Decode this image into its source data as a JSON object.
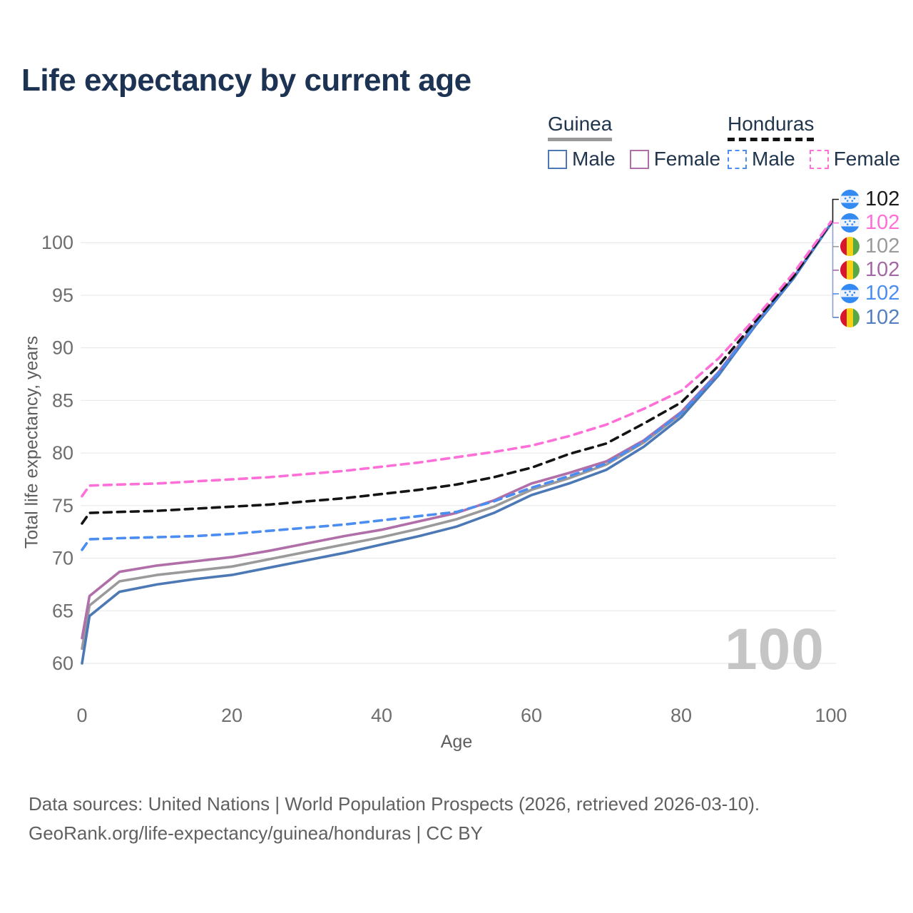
{
  "title": "Life expectancy by current age",
  "legend": {
    "groups": [
      {
        "id": "guinea",
        "name": "Guinea",
        "line_color": "#9a9a9a",
        "dashed": false,
        "items": [
          {
            "label": "Male",
            "color": "#4c79b5"
          },
          {
            "label": "Female",
            "color": "#b06fa8"
          }
        ]
      },
      {
        "id": "honduras",
        "name": "Honduras",
        "line_color": "#141414",
        "dashed": true,
        "items": [
          {
            "label": "Male",
            "color": "#4b8df0"
          },
          {
            "label": "Female",
            "color": "#ff6fd8"
          }
        ]
      }
    ]
  },
  "chart_data": {
    "type": "line",
    "title": "Life expectancy by current age",
    "xlabel": "Age",
    "ylabel": "Total life expectancy, years",
    "xlim": [
      0,
      100
    ],
    "ylim": [
      60,
      102
    ],
    "x_ticks": [
      0,
      20,
      40,
      60,
      80,
      100
    ],
    "y_ticks": [
      60,
      65,
      70,
      75,
      80,
      85,
      90,
      95,
      100
    ],
    "grid": "horizontal",
    "legend_position": "top-right",
    "x": [
      0,
      1,
      5,
      10,
      15,
      20,
      25,
      30,
      35,
      40,
      45,
      50,
      55,
      60,
      65,
      70,
      75,
      80,
      85,
      90,
      95,
      100
    ],
    "series": [
      {
        "id": "guinea",
        "name": "Guinea",
        "country": "Guinea",
        "sex": "Both",
        "color": "#9a9a9a",
        "dashed": false,
        "end_value": 102,
        "values": [
          61.4,
          65.5,
          67.8,
          68.4,
          68.8,
          69.2,
          69.9,
          70.6,
          71.3,
          72.0,
          72.8,
          73.7,
          74.9,
          76.5,
          77.6,
          78.9,
          81.0,
          83.7,
          87.6,
          92.3,
          96.7,
          101.8
        ]
      },
      {
        "id": "guinea-female",
        "name": "Guinea Female",
        "country": "Guinea",
        "sex": "Female",
        "color": "#b06fa8",
        "dashed": false,
        "end_value": 102,
        "values": [
          62.4,
          66.4,
          68.7,
          69.3,
          69.7,
          70.1,
          70.7,
          71.4,
          72.1,
          72.7,
          73.5,
          74.3,
          75.5,
          77.1,
          78.1,
          79.2,
          81.2,
          83.9,
          87.7,
          92.4,
          96.7,
          101.8
        ]
      },
      {
        "id": "guinea-male",
        "name": "Guinea Male",
        "country": "Guinea",
        "sex": "Male",
        "color": "#4c79b5",
        "dashed": false,
        "end_value": 102,
        "values": [
          60.0,
          64.5,
          66.8,
          67.5,
          68.0,
          68.4,
          69.1,
          69.8,
          70.5,
          71.3,
          72.1,
          73.0,
          74.3,
          76.0,
          77.1,
          78.4,
          80.6,
          83.4,
          87.4,
          92.2,
          96.6,
          101.8
        ]
      },
      {
        "id": "honduras-male",
        "name": "Honduras Male",
        "country": "Honduras",
        "sex": "Male",
        "color": "#4b8df0",
        "dashed": true,
        "end_value": 102,
        "values": [
          70.8,
          71.8,
          71.9,
          72.0,
          72.1,
          72.3,
          72.6,
          72.9,
          73.2,
          73.6,
          74.0,
          74.4,
          75.4,
          76.7,
          77.8,
          79.0,
          81.1,
          83.8,
          87.6,
          92.3,
          96.7,
          101.8
        ]
      },
      {
        "id": "honduras",
        "name": "Honduras",
        "country": "Honduras",
        "sex": "Both",
        "color": "#141414",
        "dashed": true,
        "end_value": 102,
        "values": [
          73.3,
          74.3,
          74.4,
          74.5,
          74.7,
          74.9,
          75.1,
          75.4,
          75.7,
          76.1,
          76.5,
          77.0,
          77.7,
          78.6,
          79.9,
          80.9,
          82.8,
          84.8,
          88.3,
          92.6,
          96.8,
          101.9
        ]
      },
      {
        "id": "honduras-female",
        "name": "Honduras Female",
        "country": "Honduras",
        "sex": "Female",
        "color": "#ff6fd8",
        "dashed": true,
        "end_value": 102,
        "values": [
          75.9,
          76.9,
          77.0,
          77.1,
          77.3,
          77.5,
          77.7,
          78.0,
          78.3,
          78.7,
          79.1,
          79.6,
          80.1,
          80.7,
          81.6,
          82.7,
          84.2,
          85.9,
          89.0,
          92.9,
          97.1,
          102.0
        ]
      }
    ]
  },
  "end_labels": [
    {
      "id": "honduras",
      "series": "Honduras",
      "flag": "honduras",
      "value": "102",
      "color": "#1a1a1a"
    },
    {
      "id": "honduras-female",
      "series": "Honduras Female",
      "flag": "honduras",
      "value": "102",
      "color": "#ff6fd8"
    },
    {
      "id": "guinea",
      "series": "Guinea",
      "flag": "guinea",
      "value": "102",
      "color": "#9a9a9a"
    },
    {
      "id": "guinea-female",
      "series": "Guinea Female",
      "flag": "guinea",
      "value": "102",
      "color": "#a569a5"
    },
    {
      "id": "honduras-male",
      "series": "Honduras Male",
      "flag": "honduras",
      "value": "102",
      "color": "#4b8df0"
    },
    {
      "id": "guinea-male",
      "series": "Guinea Male",
      "flag": "guinea",
      "value": "102",
      "color": "#5480c1"
    }
  ],
  "leader_color": "#8b9fd4",
  "watermark": "100",
  "flag_colors": {
    "honduras_blue": "#338af3",
    "honduras_white": "#eef3f8",
    "guinea_red": "#d8172c",
    "guinea_yellow": "#f7d118",
    "guinea_green": "#58a846"
  },
  "footer": {
    "line1": "Data sources: United Nations | World Population Prospects (2026, retrieved 2026-03-10).",
    "line2": "GeoRank.org/life-expectancy/guinea/honduras | CC BY"
  }
}
